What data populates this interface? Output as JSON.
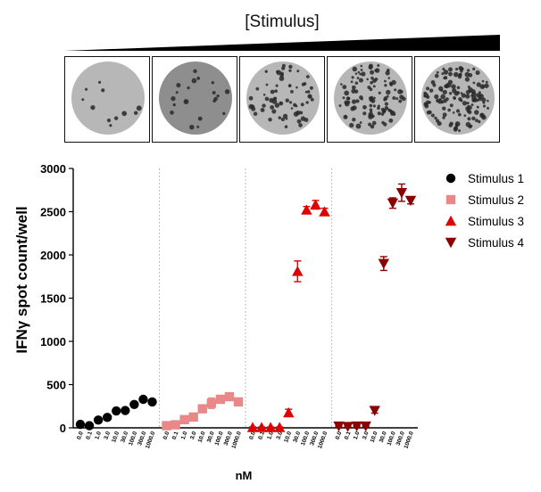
{
  "header": {
    "gradient_label": "[Stimulus]"
  },
  "wells": [
    {
      "name": "well-1",
      "spot_level": 0.05
    },
    {
      "name": "well-2",
      "spot_level": 0.12
    },
    {
      "name": "well-3",
      "spot_level": 0.45
    },
    {
      "name": "well-4",
      "spot_level": 0.75
    },
    {
      "name": "well-5",
      "spot_level": 0.95
    }
  ],
  "chart_data": {
    "type": "scatter",
    "title": "",
    "xlabel": "nM",
    "ylabel": "IFNγ spot count/well",
    "ylim": [
      0,
      3000
    ],
    "yticks": [
      "0",
      "500",
      "1000",
      "1500",
      "2000",
      "2500",
      "3000"
    ],
    "grid": false,
    "legend_position": "right",
    "x_tick_labels": [
      "0.0",
      "0.1",
      "1.0",
      "3.0",
      "10.0",
      "30.0",
      "100.0",
      "300.0",
      "1000.0"
    ],
    "series": [
      {
        "name": "Stimulus 1",
        "marker": "circle",
        "color": "#000000",
        "x": [
          "0.0",
          "0.1",
          "1.0",
          "3.0",
          "10.0",
          "30.0",
          "100.0",
          "300.0",
          "1000.0"
        ],
        "values": [
          40,
          25,
          90,
          120,
          195,
          200,
          270,
          330,
          300
        ],
        "errors": [
          10,
          10,
          10,
          15,
          10,
          15,
          15,
          15,
          20
        ]
      },
      {
        "name": "Stimulus 2",
        "marker": "square",
        "color": "#e88888",
        "x": [
          "0.0",
          "0.1",
          "1.0",
          "3.0",
          "10.0",
          "30.0",
          "100.0",
          "300.0",
          "1000.0"
        ],
        "values": [
          25,
          35,
          95,
          125,
          220,
          285,
          330,
          360,
          300
        ],
        "errors": [
          10,
          10,
          15,
          15,
          30,
          60,
          40,
          20,
          15
        ]
      },
      {
        "name": "Stimulus 3",
        "marker": "triangle-up",
        "color": "#e00000",
        "x": [
          "0.0",
          "0.1",
          "1.0",
          "3.0",
          "10.0",
          "30.0",
          "100.0",
          "300.0",
          "1000.0"
        ],
        "values": [
          5,
          5,
          5,
          5,
          175,
          1810,
          2520,
          2580,
          2500
        ],
        "errors": [
          5,
          5,
          5,
          5,
          40,
          120,
          40,
          50,
          40
        ]
      },
      {
        "name": "Stimulus 4",
        "marker": "triangle-down",
        "color": "#8b0000",
        "x": [
          "0.0",
          "0.1",
          "1.0",
          "3.0",
          "10.0",
          "30.0",
          "100.0",
          "300.0",
          "1000.0"
        ],
        "values": [
          20,
          15,
          20,
          20,
          200,
          1900,
          2600,
          2720,
          2630
        ],
        "errors": [
          5,
          5,
          5,
          5,
          30,
          80,
          60,
          100,
          40
        ]
      }
    ]
  }
}
